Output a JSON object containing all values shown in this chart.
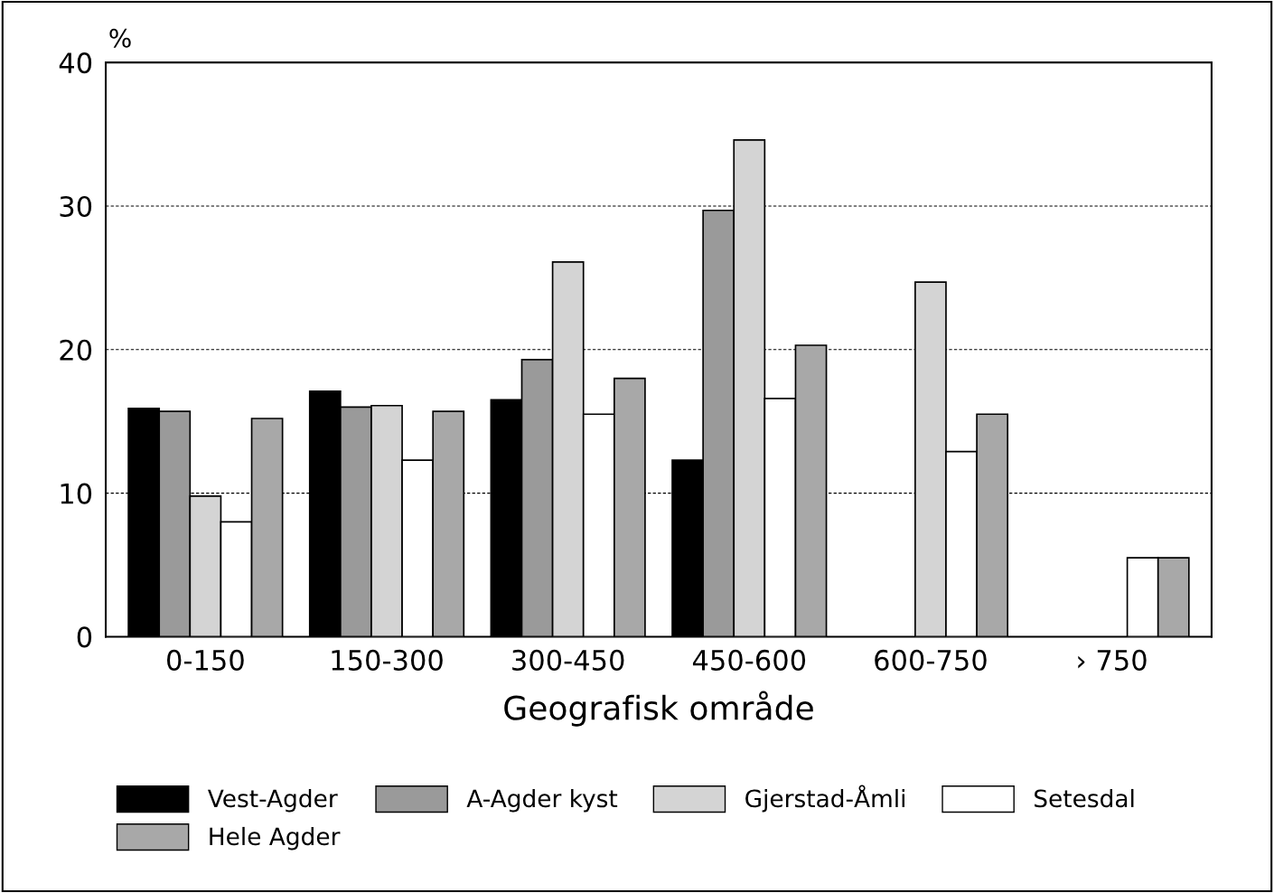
{
  "chart_data": {
    "type": "bar",
    "xlabel": "Geografisk område",
    "ylabel": "%",
    "categories": [
      "0-150",
      "150-300",
      "300-450",
      "450-600",
      "600-750",
      "› 750"
    ],
    "series": [
      {
        "name": "Vest-Agder",
        "color": "#000000",
        "values": [
          15.9,
          17.1,
          16.5,
          12.3,
          null,
          null
        ]
      },
      {
        "name": "A-Agder kyst",
        "color": "#9a9a9a",
        "values": [
          15.7,
          16.0,
          19.3,
          29.7,
          null,
          null
        ]
      },
      {
        "name": "Gjerstad-Åmli",
        "color": "#d4d4d4",
        "values": [
          9.8,
          16.1,
          26.1,
          34.6,
          24.7,
          null
        ]
      },
      {
        "name": "Setesdal",
        "color": "#ffffff",
        "values": [
          8.0,
          12.3,
          15.5,
          16.6,
          12.9,
          5.5
        ]
      },
      {
        "name": "Hele Agder",
        "color": "#a8a8a8",
        "values": [
          15.2,
          15.7,
          18.0,
          20.3,
          15.5,
          5.5
        ]
      }
    ],
    "ylim": [
      0,
      40
    ],
    "yticks": [
      0,
      10,
      20,
      30,
      40
    ],
    "grid": "y",
    "legend": "bottom"
  }
}
